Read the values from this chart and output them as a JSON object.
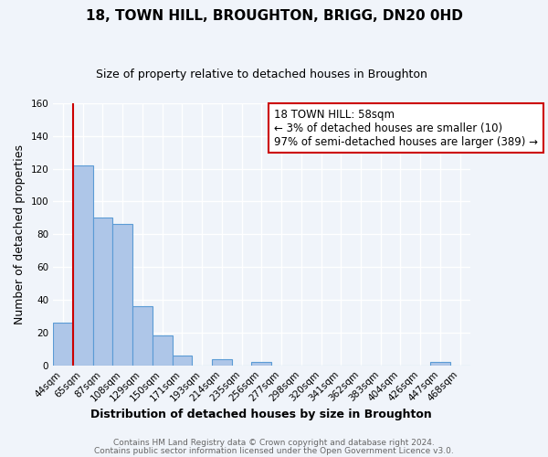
{
  "title": "18, TOWN HILL, BROUGHTON, BRIGG, DN20 0HD",
  "subtitle": "Size of property relative to detached houses in Broughton",
  "xlabel": "Distribution of detached houses by size in Broughton",
  "ylabel": "Number of detached properties",
  "bin_labels": [
    "44sqm",
    "65sqm",
    "87sqm",
    "108sqm",
    "129sqm",
    "150sqm",
    "171sqm",
    "193sqm",
    "214sqm",
    "235sqm",
    "256sqm",
    "277sqm",
    "298sqm",
    "320sqm",
    "341sqm",
    "362sqm",
    "383sqm",
    "404sqm",
    "426sqm",
    "447sqm",
    "468sqm"
  ],
  "bar_values": [
    26,
    122,
    90,
    86,
    36,
    18,
    6,
    0,
    4,
    0,
    2,
    0,
    0,
    0,
    0,
    0,
    0,
    0,
    0,
    2,
    0
  ],
  "bar_color": "#aec6e8",
  "bar_edge_color": "#5b9bd5",
  "marker_line_color": "#cc0000",
  "annotation_text": "18 TOWN HILL: 58sqm\n← 3% of detached houses are smaller (10)\n97% of semi-detached houses are larger (389) →",
  "annotation_box_color": "#ffffff",
  "annotation_box_edge": "#cc0000",
  "ylim": [
    0,
    160
  ],
  "yticks": [
    0,
    20,
    40,
    60,
    80,
    100,
    120,
    140,
    160
  ],
  "footer_line1": "Contains HM Land Registry data © Crown copyright and database right 2024.",
  "footer_line2": "Contains public sector information licensed under the Open Government Licence v3.0.",
  "background_color": "#f0f4fa",
  "grid_color": "#d8e4f0",
  "title_fontsize": 11,
  "subtitle_fontsize": 9,
  "axis_label_fontsize": 9,
  "tick_fontsize": 7.5,
  "footer_fontsize": 6.5
}
